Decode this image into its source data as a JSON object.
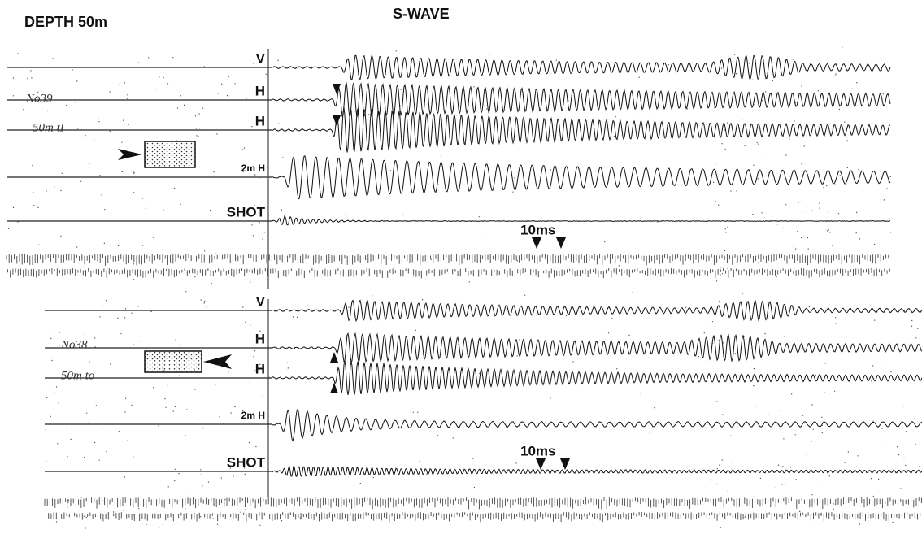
{
  "header": {
    "title": "DEPTH 50m",
    "subtitle": "S-WAVE"
  },
  "panels": [
    {
      "record": "No39",
      "note": "50m tI",
      "timing": "10ms",
      "traces": [
        {
          "label": "V"
        },
        {
          "label": "H"
        },
        {
          "label": "H"
        },
        {
          "label": "2m H"
        },
        {
          "label": "SHOT"
        }
      ]
    },
    {
      "record": "No38",
      "note": "50m to",
      "timing": "10ms",
      "traces": [
        {
          "label": "V"
        },
        {
          "label": "H"
        },
        {
          "label": "H"
        },
        {
          "label": "2m H"
        },
        {
          "label": "SHOT"
        }
      ]
    }
  ]
}
